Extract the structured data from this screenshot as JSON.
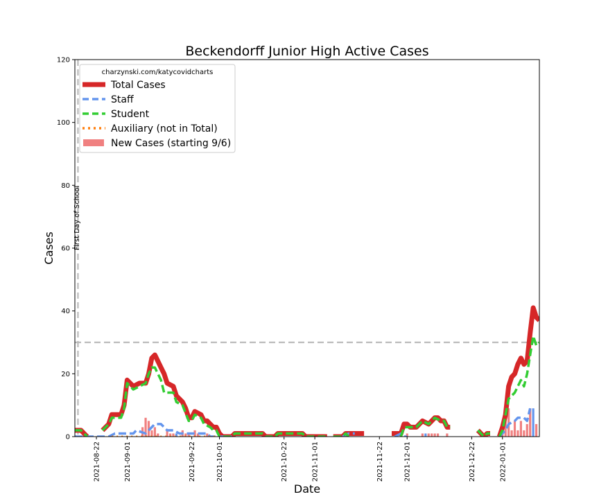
{
  "chart_data": {
    "type": "line",
    "title": "Beckendorff Junior High Active Cases",
    "xlabel": "Date",
    "ylabel": "Cases",
    "x_range": [
      "2021-08-15",
      "2022-01-13"
    ],
    "ylim": [
      0,
      120
    ],
    "y_ticks": [
      0,
      20,
      40,
      60,
      80,
      100,
      120
    ],
    "x_ticks": [
      "2021-08-22",
      "2021-09-01",
      "2021-09-22",
      "2021-10-01",
      "2021-10-22",
      "2021-11-01",
      "2021-11-22",
      "2021-12-01",
      "2021-12-22",
      "2022-01-01"
    ],
    "grid": false,
    "legend": {
      "placement": "top-left",
      "title": "charzynski.com/katycovidcharts",
      "entries": [
        "Total Cases",
        "Staff",
        "Student",
        "Auxiliary (not in Total)",
        "New Cases (starting 9/6)"
      ]
    },
    "annotations": {
      "first_day_label": "First Day of School",
      "first_day_date": "2021-08-16",
      "reference_line_y": 30
    },
    "colors": {
      "total": "#d62728",
      "staff": "#6495ed",
      "student": "#32cd32",
      "auxiliary": "#ff7f0e",
      "new_cases": "#f08080",
      "reference": "#bbbbbb"
    },
    "series": [
      {
        "name": "Total Cases",
        "segments": [
          [
            [
              "2021-08-15",
              2
            ],
            [
              "2021-08-17",
              2
            ],
            [
              "2021-08-19",
              0
            ]
          ],
          [
            [
              "2021-08-24",
              2
            ],
            [
              "2021-08-26",
              4
            ],
            [
              "2021-08-27",
              7
            ],
            [
              "2021-08-29",
              7
            ],
            [
              "2021-08-30",
              7
            ],
            [
              "2021-08-31",
              10
            ],
            [
              "2021-09-01",
              18
            ],
            [
              "2021-09-03",
              16
            ],
            [
              "2021-09-05",
              17
            ],
            [
              "2021-09-07",
              17
            ],
            [
              "2021-09-08",
              20
            ],
            [
              "2021-09-09",
              25
            ],
            [
              "2021-09-10",
              26
            ],
            [
              "2021-09-12",
              22
            ],
            [
              "2021-09-13",
              20
            ],
            [
              "2021-09-14",
              17
            ],
            [
              "2021-09-16",
              16
            ],
            [
              "2021-09-17",
              13
            ],
            [
              "2021-09-19",
              11
            ],
            [
              "2021-09-20",
              9
            ],
            [
              "2021-09-21",
              6
            ],
            [
              "2021-09-22",
              6
            ],
            [
              "2021-09-23",
              8
            ],
            [
              "2021-09-25",
              7
            ],
            [
              "2021-09-26",
              5
            ],
            [
              "2021-09-27",
              5
            ],
            [
              "2021-09-28",
              4
            ],
            [
              "2021-09-29",
              3
            ],
            [
              "2021-09-30",
              3
            ],
            [
              "2021-10-01",
              1
            ],
            [
              "2021-10-02",
              0
            ],
            [
              "2021-10-05",
              0
            ],
            [
              "2021-10-06",
              1
            ],
            [
              "2021-10-15",
              1
            ],
            [
              "2021-10-16",
              0
            ],
            [
              "2021-10-19",
              0
            ],
            [
              "2021-10-20",
              1
            ],
            [
              "2021-10-28",
              1
            ],
            [
              "2021-10-29",
              0
            ],
            [
              "2021-11-05",
              0
            ]
          ],
          [
            [
              "2021-11-07",
              0
            ],
            [
              "2021-11-10",
              0
            ],
            [
              "2021-11-11",
              1
            ],
            [
              "2021-11-12",
              1
            ],
            [
              "2021-11-17",
              1
            ]
          ],
          [
            [
              "2021-11-26",
              1
            ],
            [
              "2021-11-29",
              1
            ],
            [
              "2021-11-30",
              4
            ],
            [
              "2021-12-01",
              4
            ],
            [
              "2021-12-02",
              3
            ],
            [
              "2021-12-04",
              3
            ],
            [
              "2021-12-06",
              5
            ],
            [
              "2021-12-08",
              4
            ],
            [
              "2021-12-10",
              6
            ],
            [
              "2021-12-11",
              6
            ],
            [
              "2021-12-12",
              5
            ],
            [
              "2021-12-13",
              5
            ],
            [
              "2021-12-14",
              3
            ],
            [
              "2021-12-15",
              3
            ]
          ],
          [
            [
              "2021-12-24",
              2
            ],
            [
              "2021-12-26",
              0
            ],
            [
              "2021-12-27",
              1
            ],
            [
              "2021-12-28",
              1
            ]
          ],
          [
            [
              "2021-12-31",
              0
            ],
            [
              "2022-01-01",
              3
            ],
            [
              "2022-01-02",
              7
            ],
            [
              "2022-01-03",
              16
            ],
            [
              "2022-01-04",
              19
            ],
            [
              "2022-01-05",
              20
            ],
            [
              "2022-01-06",
              23
            ],
            [
              "2022-01-07",
              25
            ],
            [
              "2022-01-08",
              23
            ],
            [
              "2022-01-09",
              24
            ],
            [
              "2022-01-10",
              33
            ],
            [
              "2022-01-11",
              41
            ],
            [
              "2022-01-12",
              38
            ],
            [
              "2022-01-13",
              37
            ]
          ]
        ]
      },
      {
        "name": "Staff",
        "segments": [
          [
            [
              "2021-08-15",
              0
            ],
            [
              "2021-08-26",
              0
            ],
            [
              "2021-08-28",
              1
            ],
            [
              "2021-09-01",
              1
            ],
            [
              "2021-09-02",
              1
            ],
            [
              "2021-09-03",
              1
            ],
            [
              "2021-09-04",
              2
            ],
            [
              "2021-09-07",
              1
            ],
            [
              "2021-09-09",
              3
            ],
            [
              "2021-09-10",
              4
            ],
            [
              "2021-09-12",
              4
            ],
            [
              "2021-09-13",
              3
            ],
            [
              "2021-09-14",
              2
            ],
            [
              "2021-09-16",
              2
            ],
            [
              "2021-09-18",
              1
            ],
            [
              "2021-09-27",
              1
            ],
            [
              "2021-09-28",
              0
            ],
            [
              "2021-10-05",
              0
            ]
          ],
          [
            [
              "2021-11-10",
              0
            ],
            [
              "2021-11-12",
              1
            ],
            [
              "2021-11-14",
              1
            ]
          ],
          [
            [
              "2021-11-27",
              0
            ],
            [
              "2021-11-29",
              1
            ],
            [
              "2021-11-30",
              0
            ],
            [
              "2021-12-01",
              0
            ]
          ],
          [
            [
              "2021-12-31",
              0
            ],
            [
              "2022-01-02",
              2
            ],
            [
              "2022-01-03",
              4
            ],
            [
              "2022-01-05",
              5
            ],
            [
              "2022-01-06",
              6
            ],
            [
              "2022-01-08",
              6
            ],
            [
              "2022-01-09",
              5
            ],
            [
              "2022-01-10",
              9
            ]
          ]
        ]
      },
      {
        "name": "Student",
        "segments": [
          [
            [
              "2021-08-15",
              2
            ],
            [
              "2021-08-17",
              2
            ],
            [
              "2021-08-19",
              0
            ]
          ],
          [
            [
              "2021-08-24",
              2
            ],
            [
              "2021-08-26",
              4
            ],
            [
              "2021-08-27",
              6
            ],
            [
              "2021-08-30",
              6
            ],
            [
              "2021-08-31",
              9
            ],
            [
              "2021-09-01",
              17
            ],
            [
              "2021-09-03",
              15
            ],
            [
              "2021-09-05",
              16
            ],
            [
              "2021-09-07",
              17
            ],
            [
              "2021-09-08",
              20
            ],
            [
              "2021-09-09",
              22
            ],
            [
              "2021-09-10",
              22
            ],
            [
              "2021-09-12",
              18
            ],
            [
              "2021-09-13",
              14
            ],
            [
              "2021-09-16",
              14
            ],
            [
              "2021-09-17",
              11
            ],
            [
              "2021-09-19",
              10
            ],
            [
              "2021-09-21",
              5
            ],
            [
              "2021-09-22",
              5
            ],
            [
              "2021-09-23",
              7
            ],
            [
              "2021-09-25",
              6
            ],
            [
              "2021-09-26",
              4
            ],
            [
              "2021-09-28",
              3
            ],
            [
              "2021-09-29",
              2
            ],
            [
              "2021-09-30",
              2
            ],
            [
              "2021-10-01",
              0
            ],
            [
              "2021-10-05",
              0
            ],
            [
              "2021-10-06",
              1
            ],
            [
              "2021-10-15",
              1
            ],
            [
              "2021-10-16",
              0
            ],
            [
              "2021-10-19",
              0
            ],
            [
              "2021-10-20",
              1
            ],
            [
              "2021-10-28",
              1
            ],
            [
              "2021-10-29",
              0
            ],
            [
              "2021-11-05",
              0
            ]
          ],
          [
            [
              "2021-11-07",
              0
            ],
            [
              "2021-11-10",
              0
            ],
            [
              "2021-11-11",
              1
            ],
            [
              "2021-11-12",
              0
            ]
          ],
          [
            [
              "2021-11-29",
              0
            ],
            [
              "2021-11-30",
              3
            ],
            [
              "2021-12-01",
              3
            ],
            [
              "2021-12-04",
              3
            ],
            [
              "2021-12-06",
              5
            ],
            [
              "2021-12-08",
              4
            ],
            [
              "2021-12-10",
              6
            ],
            [
              "2021-12-12",
              5
            ],
            [
              "2021-12-13",
              5
            ],
            [
              "2021-12-14",
              3
            ],
            [
              "2021-12-15",
              3
            ]
          ],
          [
            [
              "2021-12-24",
              2
            ],
            [
              "2021-12-26",
              0
            ],
            [
              "2021-12-27",
              1
            ],
            [
              "2021-12-28",
              1
            ]
          ],
          [
            [
              "2021-12-31",
              0
            ],
            [
              "2022-01-01",
              2
            ],
            [
              "2022-01-03",
              12
            ],
            [
              "2022-01-05",
              14
            ],
            [
              "2022-01-06",
              16
            ],
            [
              "2022-01-07",
              18
            ],
            [
              "2022-01-08",
              16
            ],
            [
              "2022-01-09",
              20
            ],
            [
              "2022-01-10",
              26
            ],
            [
              "2022-01-11",
              32
            ],
            [
              "2022-01-12",
              29
            ],
            [
              "2022-01-13",
              30
            ]
          ]
        ]
      },
      {
        "name": "Auxiliary (not in Total)",
        "segments": [
          [
            [
              "2021-08-27",
              0
            ],
            [
              "2021-09-30",
              0
            ]
          ]
        ]
      },
      {
        "name": "New Cases (starting 9/6)",
        "bars": [
          [
            "2021-09-06",
            3,
            "#f08080"
          ],
          [
            "2021-09-07",
            6,
            "#f08080"
          ],
          [
            "2021-09-08",
            5,
            "#f08080"
          ],
          [
            "2021-09-09",
            2,
            "#f08080"
          ],
          [
            "2021-09-10",
            3,
            "#f08080"
          ],
          [
            "2021-09-11",
            1,
            "#f08080"
          ],
          [
            "2021-09-14",
            2,
            "#f08080"
          ],
          [
            "2021-09-15",
            1,
            "#f08080"
          ],
          [
            "2021-09-16",
            1,
            "#f08080"
          ],
          [
            "2021-09-17",
            1,
            "#6495ed"
          ],
          [
            "2021-09-19",
            2,
            "#f08080"
          ],
          [
            "2021-09-20",
            1,
            "#f08080"
          ],
          [
            "2021-09-21",
            1,
            "#f08080"
          ],
          [
            "2021-09-23",
            2,
            "#f08080"
          ],
          [
            "2021-09-24",
            1,
            "#f08080"
          ],
          [
            "2021-09-27",
            1,
            "#f08080"
          ],
          [
            "2021-12-01",
            1,
            "#f08080"
          ],
          [
            "2021-12-06",
            1,
            "#f08080"
          ],
          [
            "2021-12-07",
            1,
            "#6495ed"
          ],
          [
            "2021-12-08",
            1,
            "#f08080"
          ],
          [
            "2021-12-09",
            1,
            "#f08080"
          ],
          [
            "2021-12-10",
            1,
            "#f08080"
          ],
          [
            "2021-12-11",
            1,
            "#f08080"
          ],
          [
            "2021-12-14",
            1,
            "#f08080"
          ],
          [
            "2022-01-01",
            2,
            "#f08080"
          ],
          [
            "2022-01-02",
            6,
            "#f08080"
          ],
          [
            "2022-01-03",
            9,
            "#f08080"
          ],
          [
            "2022-01-04",
            2,
            "#f08080"
          ],
          [
            "2022-01-05",
            5,
            "#f08080"
          ],
          [
            "2022-01-06",
            2,
            "#f08080"
          ],
          [
            "2022-01-07",
            5,
            "#f08080"
          ],
          [
            "2022-01-08",
            2,
            "#f08080"
          ],
          [
            "2022-01-09",
            4,
            "#f08080"
          ],
          [
            "2022-01-10",
            9,
            "#f08080"
          ],
          [
            "2022-01-11",
            9,
            "#6495ed"
          ],
          [
            "2022-01-12",
            4,
            "#f08080"
          ]
        ]
      }
    ]
  }
}
